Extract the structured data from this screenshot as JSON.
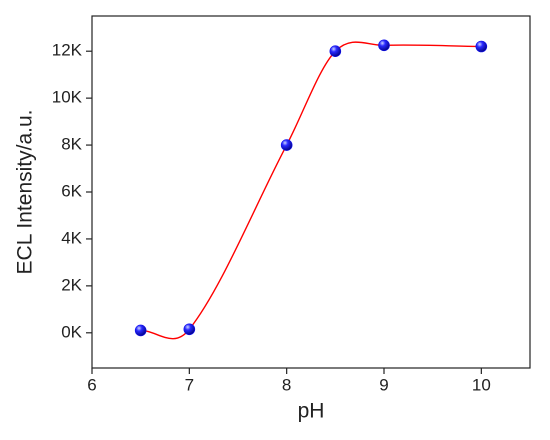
{
  "chart_data": {
    "type": "scatter",
    "x_label": "pH",
    "y_label": "ECL Intensity/a.u.",
    "x": [
      6.5,
      7,
      8,
      8.5,
      9,
      10
    ],
    "series": [
      {
        "color": "#1010ee",
        "line_color": "#ff0000",
        "values": [
          100,
          150,
          8000,
          12000,
          12250,
          12200
        ]
      }
    ],
    "xlim": [
      6,
      10.5
    ],
    "xticks": [
      6,
      7,
      8,
      9,
      10
    ],
    "ylim": [
      -1500,
      13500
    ],
    "yticks": [
      {
        "value": 0,
        "label": "0K"
      },
      {
        "value": 2000,
        "label": "2K"
      },
      {
        "value": 4000,
        "label": "4K"
      },
      {
        "value": 6000,
        "label": "6K"
      },
      {
        "value": 8000,
        "label": "8K"
      },
      {
        "value": 10000,
        "label": "10K"
      },
      {
        "value": 12000,
        "label": "12K"
      }
    ],
    "grid": false
  }
}
